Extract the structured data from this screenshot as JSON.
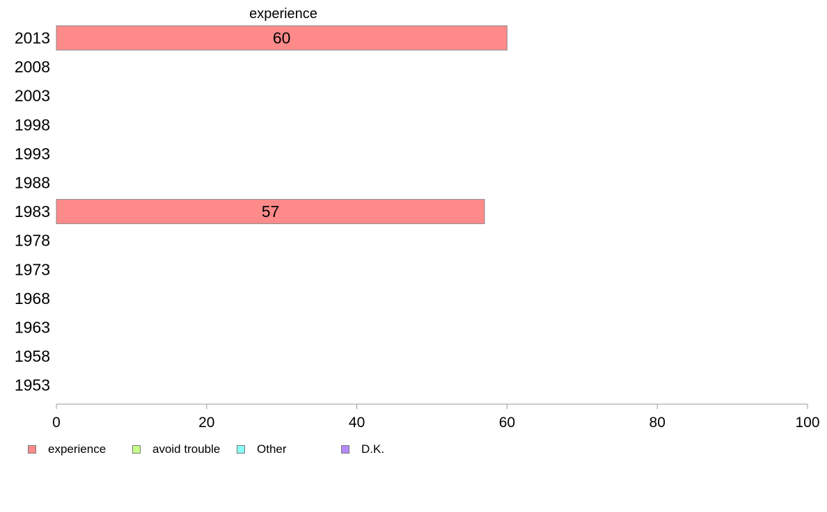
{
  "chart_data": {
    "type": "bar",
    "orientation": "horizontal",
    "stacked": true,
    "title": "",
    "xlabel": "",
    "ylabel": "",
    "categories": [
      "2013",
      "2008",
      "2003",
      "1998",
      "1993",
      "1988",
      "1983",
      "1978",
      "1973",
      "1968",
      "1963",
      "1958",
      "1953"
    ],
    "series": [
      {
        "name": "experience",
        "color": "#ff8a8a",
        "values": [
          60,
          null,
          null,
          null,
          null,
          null,
          57,
          null,
          null,
          null,
          null,
          null,
          null
        ],
        "value_labels": [
          "60",
          null,
          null,
          null,
          null,
          null,
          "57",
          null,
          null,
          null,
          null,
          null,
          null
        ]
      },
      {
        "name": "avoid trouble",
        "color": "#c6ff8a",
        "values": [
          null,
          null,
          null,
          null,
          null,
          null,
          null,
          null,
          null,
          null,
          null,
          null,
          null
        ]
      },
      {
        "name": "Other",
        "color": "#8afff7",
        "values": [
          null,
          null,
          null,
          null,
          null,
          null,
          null,
          null,
          null,
          null,
          null,
          null,
          null
        ]
      },
      {
        "name": "D.K.",
        "color": "#b68aff",
        "values": [
          null,
          null,
          null,
          null,
          null,
          null,
          null,
          null,
          null,
          null,
          null,
          null,
          null
        ]
      }
    ],
    "column_header": "experience",
    "xlim": [
      0,
      100
    ],
    "xticks": [
      0,
      20,
      40,
      60,
      80,
      100
    ],
    "xtick_labels": [
      "0",
      "20",
      "40",
      "60",
      "80",
      "100"
    ],
    "grid": false,
    "legend_position": "bottom-left"
  }
}
